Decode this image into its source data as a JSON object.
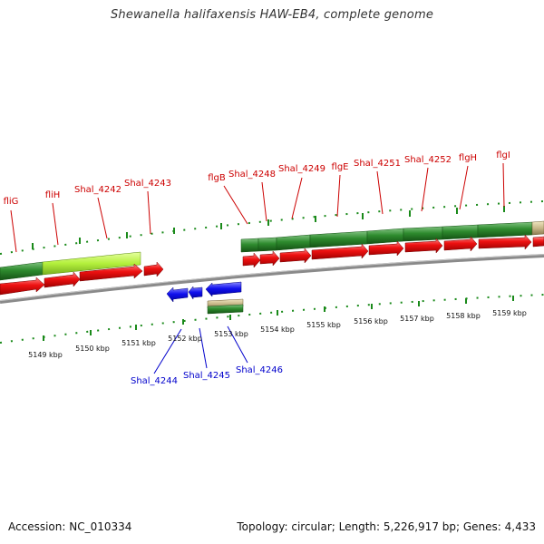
{
  "title": "Shewanella halifaxensis HAW-EB4, complete genome",
  "footer": {
    "accession": "Accession: NC_010334",
    "topology": "Topology: circular; Length: 5,226,917 bp; Genes: 4,433"
  },
  "colors": {
    "forward_gene_label": "#cc0000",
    "reverse_gene_label": "#0000cc",
    "backbone": "#888888",
    "forward_cds": "#ee1111",
    "reverse_cds": "#1111ee",
    "gene_track": "#2e8b2e",
    "highlight_gene": "#b4f03c",
    "tick": "#1a8a1a"
  },
  "axis": {
    "unit": "kbp",
    "ticks": [
      "5149 kbp",
      "5150 kbp",
      "5151 kbp",
      "5152 kbp",
      "5153 kbp",
      "5154 kbp",
      "5155 kbp",
      "5156 kbp",
      "5157 kbp",
      "5158 kbp",
      "5159 kbp"
    ]
  },
  "forward_labels": [
    "fliG",
    "fliH",
    "Shal_4242",
    "Shal_4243",
    "flgB",
    "Shal_4248",
    "Shal_4249",
    "flgE",
    "Shal_4251",
    "Shal_4252",
    "flgH",
    "flgI"
  ],
  "reverse_labels": [
    "Shal_4244",
    "Shal_4245",
    "Shal_4246"
  ]
}
